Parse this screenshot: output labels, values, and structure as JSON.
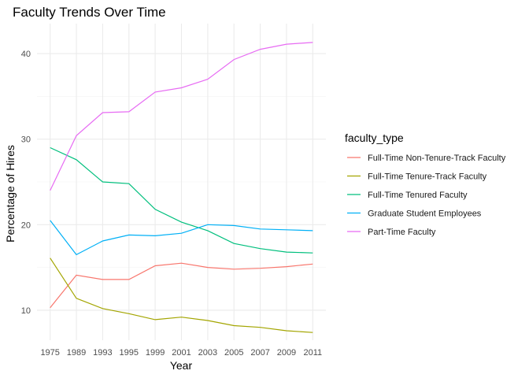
{
  "chart_data": {
    "type": "line",
    "title": "Faculty Trends Over Time",
    "xlabel": "Year",
    "ylabel": "Percentage of Hires",
    "categories": [
      "1975",
      "1989",
      "1993",
      "1995",
      "1999",
      "2001",
      "2003",
      "2005",
      "2007",
      "2009",
      "2011"
    ],
    "yticks": [
      10,
      20,
      30,
      40
    ],
    "ylim": [
      6.5,
      43.5
    ],
    "grid": true,
    "legend": {
      "title": "faculty_type",
      "position": "right"
    },
    "series": [
      {
        "name": "Full-Time Non-Tenure-Track Faculty",
        "color": "#F8766D",
        "values": [
          10.3,
          14.1,
          13.6,
          13.6,
          15.2,
          15.5,
          15.0,
          14.8,
          14.9,
          15.1,
          15.4
        ]
      },
      {
        "name": "Full-Time Tenure-Track Faculty",
        "color": "#A3A500",
        "values": [
          16.1,
          11.4,
          10.2,
          9.6,
          8.9,
          9.2,
          8.8,
          8.2,
          8.0,
          7.6,
          7.4
        ]
      },
      {
        "name": "Full-Time Tenured Faculty",
        "color": "#00BF7D",
        "values": [
          29.0,
          27.6,
          25.0,
          24.8,
          21.8,
          20.3,
          19.3,
          17.8,
          17.2,
          16.8,
          16.7
        ]
      },
      {
        "name": "Graduate Student Employees",
        "color": "#00B0F6",
        "values": [
          20.5,
          16.5,
          18.1,
          18.8,
          18.7,
          19.0,
          20.0,
          19.9,
          19.5,
          19.4,
          19.3
        ]
      },
      {
        "name": "Part-Time Faculty",
        "color": "#E76BF3",
        "values": [
          24.0,
          30.4,
          33.1,
          33.2,
          35.5,
          36.0,
          37.0,
          39.3,
          40.5,
          41.1,
          41.3
        ]
      }
    ]
  }
}
